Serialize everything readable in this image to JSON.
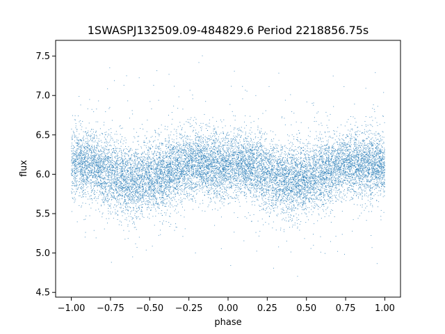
{
  "chart_data": {
    "type": "scatter",
    "title": "1SWASPJ132509.09-484829.6 Period 2218856.75s",
    "xlabel": "phase",
    "ylabel": "flux",
    "xlim": [
      -1.1,
      1.1
    ],
    "ylim": [
      4.44,
      7.7
    ],
    "x_ticks": [
      -1.0,
      -0.75,
      -0.5,
      -0.25,
      0.0,
      0.25,
      0.5,
      0.75,
      1.0
    ],
    "x_tick_labels": [
      "−1.00",
      "−0.75",
      "−0.50",
      "−0.25",
      "0.00",
      "0.25",
      "0.50",
      "0.75",
      "1.00"
    ],
    "y_ticks": [
      4.5,
      5.0,
      5.5,
      6.0,
      6.5,
      7.0,
      7.5
    ],
    "y_tick_labels": [
      "4.5",
      "5.0",
      "5.5",
      "6.0",
      "6.5",
      "7.0",
      "7.5"
    ],
    "grid": false,
    "legend": "none",
    "marker_color": "#1f77b4",
    "series": [
      {
        "phase_range": [
          -1.0,
          1.0
        ],
        "point_count": 14000,
        "flux_profile": {
          "phase": [
            0.0,
            0.05,
            0.1,
            0.15,
            0.2,
            0.25,
            0.3,
            0.35,
            0.4,
            0.45,
            0.5,
            0.55,
            0.6,
            0.65,
            0.7,
            0.75,
            0.8,
            0.85,
            0.9,
            0.95,
            1.0
          ],
          "median_flux": [
            6.12,
            6.14,
            6.12,
            6.09,
            6.05,
            6.0,
            5.97,
            5.94,
            5.92,
            5.93,
            5.95,
            5.97,
            6.0,
            6.05,
            6.1,
            6.13,
            6.14,
            6.13,
            6.1,
            6.1,
            6.12
          ],
          "spread": [
            0.2,
            0.2,
            0.2,
            0.2,
            0.21,
            0.22,
            0.22,
            0.22,
            0.22,
            0.22,
            0.22,
            0.22,
            0.22,
            0.21,
            0.2,
            0.2,
            0.2,
            0.2,
            0.2,
            0.2,
            0.2
          ]
        },
        "flux_range": [
          4.6,
          7.55
        ]
      }
    ]
  }
}
